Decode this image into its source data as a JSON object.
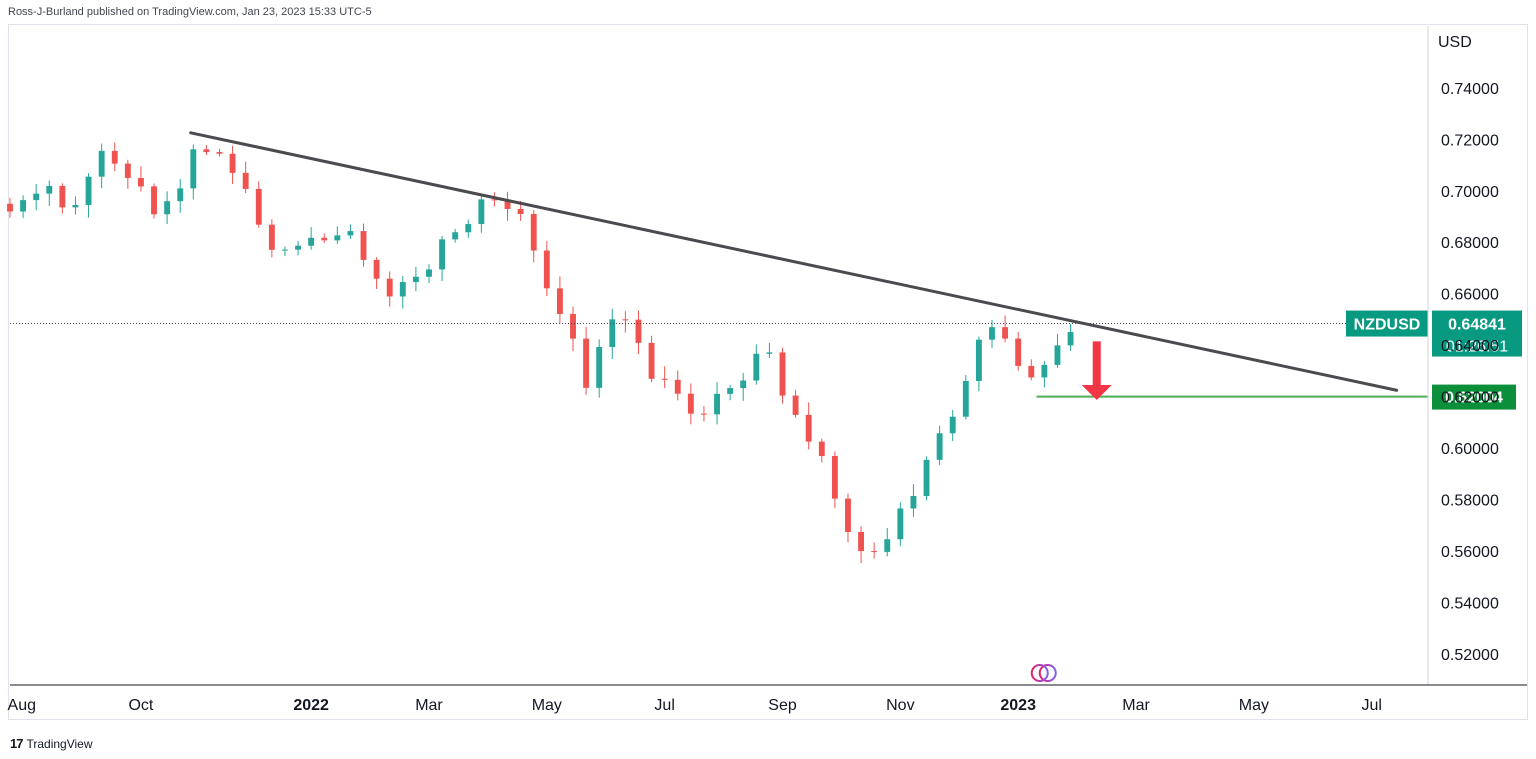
{
  "header": {
    "attribution": "Ross-J-Burland published on TradingView.com, Jan 23, 2023 15:33 UTC-5"
  },
  "footer": {
    "brand": "TradingView",
    "logo_text": "17"
  },
  "colors": {
    "up": "#26a69a",
    "down": "#ef5350",
    "trendline": "#4a4a4f",
    "support": "#4caf50",
    "label_green": "#0c8f3b",
    "label_teal": "#089981",
    "arrow": "#f23645"
  },
  "chart_data": {
    "type": "candlestick",
    "symbol": "NZDUSD",
    "currency": "USD",
    "last_price": "0.64841",
    "countdown": "01:26:51",
    "support_label": "0.62004",
    "support_level": 0.62004,
    "ylim": [
      0.508,
      0.764
    ],
    "y_ticks": [
      "0.74000",
      "0.72000",
      "0.70000",
      "0.68000",
      "0.66000",
      "0.64000",
      "0.62000",
      "0.60000",
      "0.58000",
      "0.56000",
      "0.54000",
      "0.52000"
    ],
    "x_ticks": [
      {
        "label": "Aug",
        "t": 0.9,
        "bold": false
      },
      {
        "label": "Oct",
        "t": 10.0,
        "bold": false
      },
      {
        "label": "2022",
        "t": 23.0,
        "bold": true
      },
      {
        "label": "Mar",
        "t": 32.0,
        "bold": false
      },
      {
        "label": "May",
        "t": 41.0,
        "bold": false
      },
      {
        "label": "Jul",
        "t": 50.0,
        "bold": false
      },
      {
        "label": "Sep",
        "t": 59.0,
        "bold": false
      },
      {
        "label": "Nov",
        "t": 68.0,
        "bold": false
      },
      {
        "label": "2023",
        "t": 77.0,
        "bold": true
      },
      {
        "label": "Mar",
        "t": 86.0,
        "bold": false
      },
      {
        "label": "May",
        "t": 95.0,
        "bold": false
      },
      {
        "label": "Jul",
        "t": 104.0,
        "bold": false
      }
    ],
    "x_range": [
      0,
      108.3
    ],
    "trendline": {
      "start": {
        "t": 13.8,
        "price": 0.7225
      },
      "end": {
        "t": 105.9,
        "price": 0.6225
      }
    },
    "support_line": {
      "t_start": 78.4
    },
    "arrow": {
      "t": 83.0,
      "from_price": 0.6415,
      "to_price": 0.6195
    },
    "anchors": [
      [
        0,
        0.692
      ],
      [
        1.5,
        0.698
      ],
      [
        2.6,
        0.705
      ],
      [
        3.6,
        0.701
      ],
      [
        4.5,
        0.685
      ],
      [
        5.4,
        0.702
      ],
      [
        6.6,
        0.714
      ],
      [
        7.6,
        0.712
      ],
      [
        8.8,
        0.706
      ],
      [
        10.0,
        0.703
      ],
      [
        10.8,
        0.688
      ],
      [
        12.0,
        0.695
      ],
      [
        13.3,
        0.706
      ],
      [
        14.2,
        0.719
      ],
      [
        15.2,
        0.716
      ],
      [
        16.4,
        0.712
      ],
      [
        17.4,
        0.707
      ],
      [
        18.3,
        0.697
      ],
      [
        19.2,
        0.684
      ],
      [
        20.0,
        0.679
      ],
      [
        21.2,
        0.68
      ],
      [
        22.4,
        0.674
      ],
      [
        23.5,
        0.683
      ],
      [
        24.8,
        0.683
      ],
      [
        25.8,
        0.683
      ],
      [
        26.8,
        0.676
      ],
      [
        27.8,
        0.671
      ],
      [
        28.4,
        0.657
      ],
      [
        29.5,
        0.66
      ],
      [
        30.5,
        0.667
      ],
      [
        31.6,
        0.669
      ],
      [
        32.6,
        0.675
      ],
      [
        33.6,
        0.683
      ],
      [
        34.6,
        0.686
      ],
      [
        35.5,
        0.692
      ],
      [
        36.3,
        0.699
      ],
      [
        37.2,
        0.697
      ],
      [
        38.4,
        0.694
      ],
      [
        39.3,
        0.687
      ],
      [
        40.2,
        0.675
      ],
      [
        41.0,
        0.663
      ],
      [
        42.2,
        0.653
      ],
      [
        43.0,
        0.64
      ],
      [
        44.0,
        0.625
      ],
      [
        45.0,
        0.637
      ],
      [
        45.9,
        0.65
      ],
      [
        46.8,
        0.652
      ],
      [
        47.6,
        0.65
      ],
      [
        48.3,
        0.633
      ],
      [
        49.2,
        0.626
      ],
      [
        50.0,
        0.625
      ],
      [
        50.8,
        0.621
      ],
      [
        51.6,
        0.618
      ],
      [
        52.6,
        0.612
      ],
      [
        53.6,
        0.619
      ],
      [
        54.6,
        0.625
      ],
      [
        55.6,
        0.627
      ],
      [
        56.6,
        0.632
      ],
      [
        57.6,
        0.645
      ],
      [
        58.5,
        0.625
      ],
      [
        59.6,
        0.613
      ],
      [
        60.6,
        0.606
      ],
      [
        61.6,
        0.6
      ],
      [
        62.5,
        0.594
      ],
      [
        63.2,
        0.575
      ],
      [
        64.2,
        0.566
      ],
      [
        65.0,
        0.558
      ],
      [
        66.0,
        0.56
      ],
      [
        67.0,
        0.565
      ],
      [
        68.0,
        0.578
      ],
      [
        69.0,
        0.583
      ],
      [
        70.0,
        0.594
      ],
      [
        70.8,
        0.607
      ],
      [
        71.8,
        0.612
      ],
      [
        72.8,
        0.62
      ],
      [
        73.6,
        0.638
      ],
      [
        74.6,
        0.643
      ],
      [
        75.6,
        0.646
      ],
      [
        76.6,
        0.631
      ],
      [
        77.6,
        0.628
      ],
      [
        78.4,
        0.624
      ],
      [
        79.2,
        0.634
      ],
      [
        80.2,
        0.641
      ],
      [
        81.0,
        0.648
      ]
    ]
  }
}
